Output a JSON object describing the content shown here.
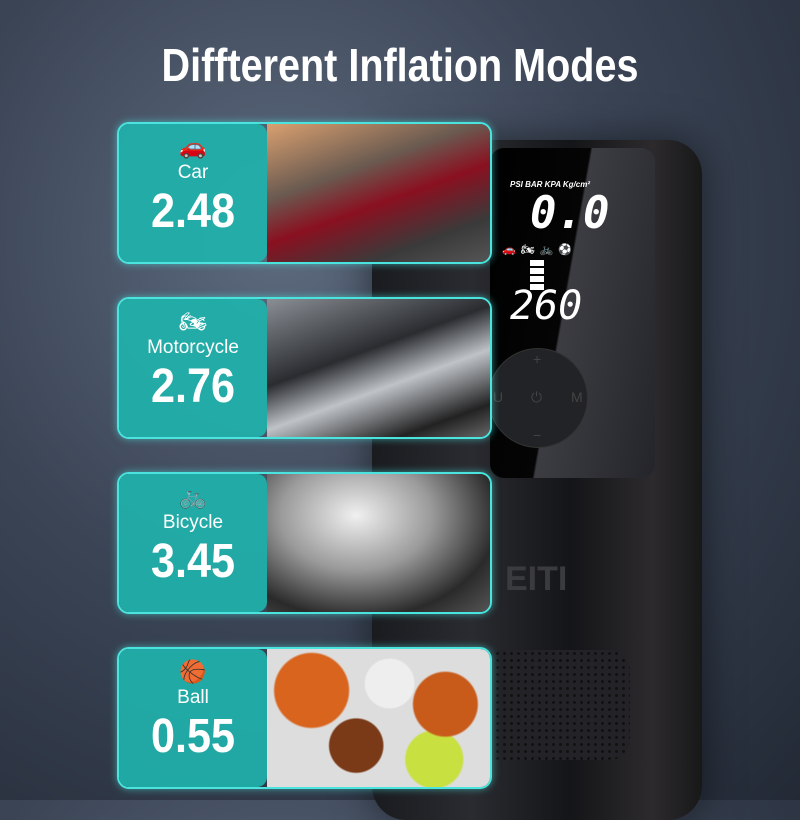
{
  "title": "Diffterent Inflation Modes",
  "device": {
    "units": "PSI BAR KPA Kg/cm²",
    "pressure": "0.0",
    "mode_icons": "🚗🏍🚲⚽",
    "target": "260",
    "buttons": {
      "plus": "+",
      "minus": "−",
      "u": "U",
      "m": "M",
      "power": "⏻"
    },
    "brand": "EITI"
  },
  "modes": [
    {
      "icon": "car-icon",
      "glyph": "🚗",
      "label": "Car",
      "value": "2.48",
      "photo": "linear-gradient(160deg,#d9a070 0%,#6a5a50 35%,#8a1020 55%,#3a3a3a 80%,#555 100%)"
    },
    {
      "icon": "motorcycle-icon",
      "glyph": "🏍",
      "label": "Motorcycle",
      "value": "2.76",
      "photo": "linear-gradient(160deg,#8a8f95 0%,#2a2c30 40%,#bfc3c8 60%,#222 85%,#666 100%)"
    },
    {
      "icon": "bicycle-icon",
      "glyph": "🚲",
      "label": "Bicycle",
      "value": "3.45",
      "photo": "radial-gradient(ellipse at 40% 30%,#f0f0f0 0%,#9a9a9a 40%,#2a2a2a 75%,#555 100%)"
    },
    {
      "icon": "ball-icon",
      "glyph": "🏀",
      "label": "Ball",
      "value": "0.55",
      "photo": "radial-gradient(circle at 20% 30%,#d8641e 0 18%,transparent 19%),radial-gradient(circle at 55% 25%,#eee 0 15%,transparent 16%),radial-gradient(circle at 80% 40%,#c85a1a 0 16%,transparent 17%),radial-gradient(circle at 40% 70%,#7a3a18 0 16%,transparent 17%),radial-gradient(circle at 75% 80%,#c8e040 0 14%,transparent 15%),#ddd"
    }
  ]
}
